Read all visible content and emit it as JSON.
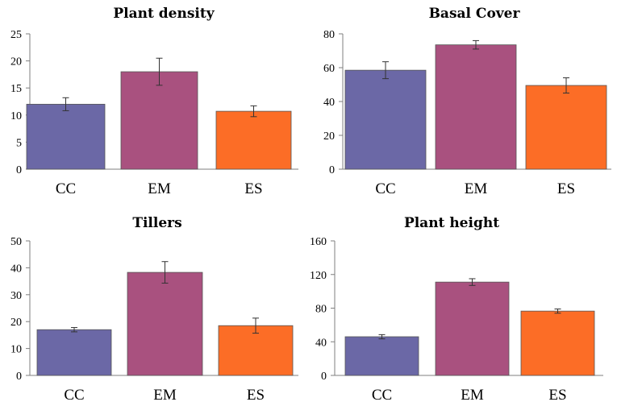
{
  "chart_data": [
    {
      "type": "bar",
      "title": "Plant density",
      "categories": [
        "CC",
        "EM",
        "ES"
      ],
      "values": [
        12,
        18,
        10.7
      ],
      "errors": [
        1.2,
        2.5,
        1.0
      ],
      "yticks": [
        0,
        5,
        10,
        15,
        20,
        25
      ],
      "ylim": [
        0,
        25
      ],
      "xlabel": "",
      "ylabel": ""
    },
    {
      "type": "bar",
      "title": "Basal Cover",
      "categories": [
        "CC",
        "EM",
        "ES"
      ],
      "values": [
        58.5,
        73.5,
        49.5
      ],
      "errors": [
        5,
        2.5,
        4.5
      ],
      "yticks": [
        0,
        20,
        40,
        60,
        80
      ],
      "ylim": [
        0,
        80
      ],
      "xlabel": "",
      "ylabel": ""
    },
    {
      "type": "bar",
      "title": "Tillers",
      "categories": [
        "CC",
        "EM",
        "ES"
      ],
      "values": [
        17,
        38.3,
        18.5
      ],
      "errors": [
        0.8,
        4,
        2.8
      ],
      "yticks": [
        0,
        10,
        20,
        30,
        40,
        50
      ],
      "ylim": [
        0,
        50
      ],
      "xlabel": "",
      "ylabel": ""
    },
    {
      "type": "bar",
      "title": "Plant height",
      "categories": [
        "CC",
        "EM",
        "ES"
      ],
      "values": [
        46,
        111,
        76.5
      ],
      "errors": [
        2.5,
        4,
        2.5
      ],
      "yticks": [
        0,
        40,
        80,
        120,
        160
      ],
      "ylim": [
        0,
        160
      ],
      "xlabel": "",
      "ylabel": ""
    }
  ],
  "colors": {
    "CC": "#6b68a6",
    "EM": "#a9517f",
    "ES": "#fc6d26",
    "bar_edge": "#555555",
    "axis": "#7f7f7f",
    "error": "#333333"
  }
}
